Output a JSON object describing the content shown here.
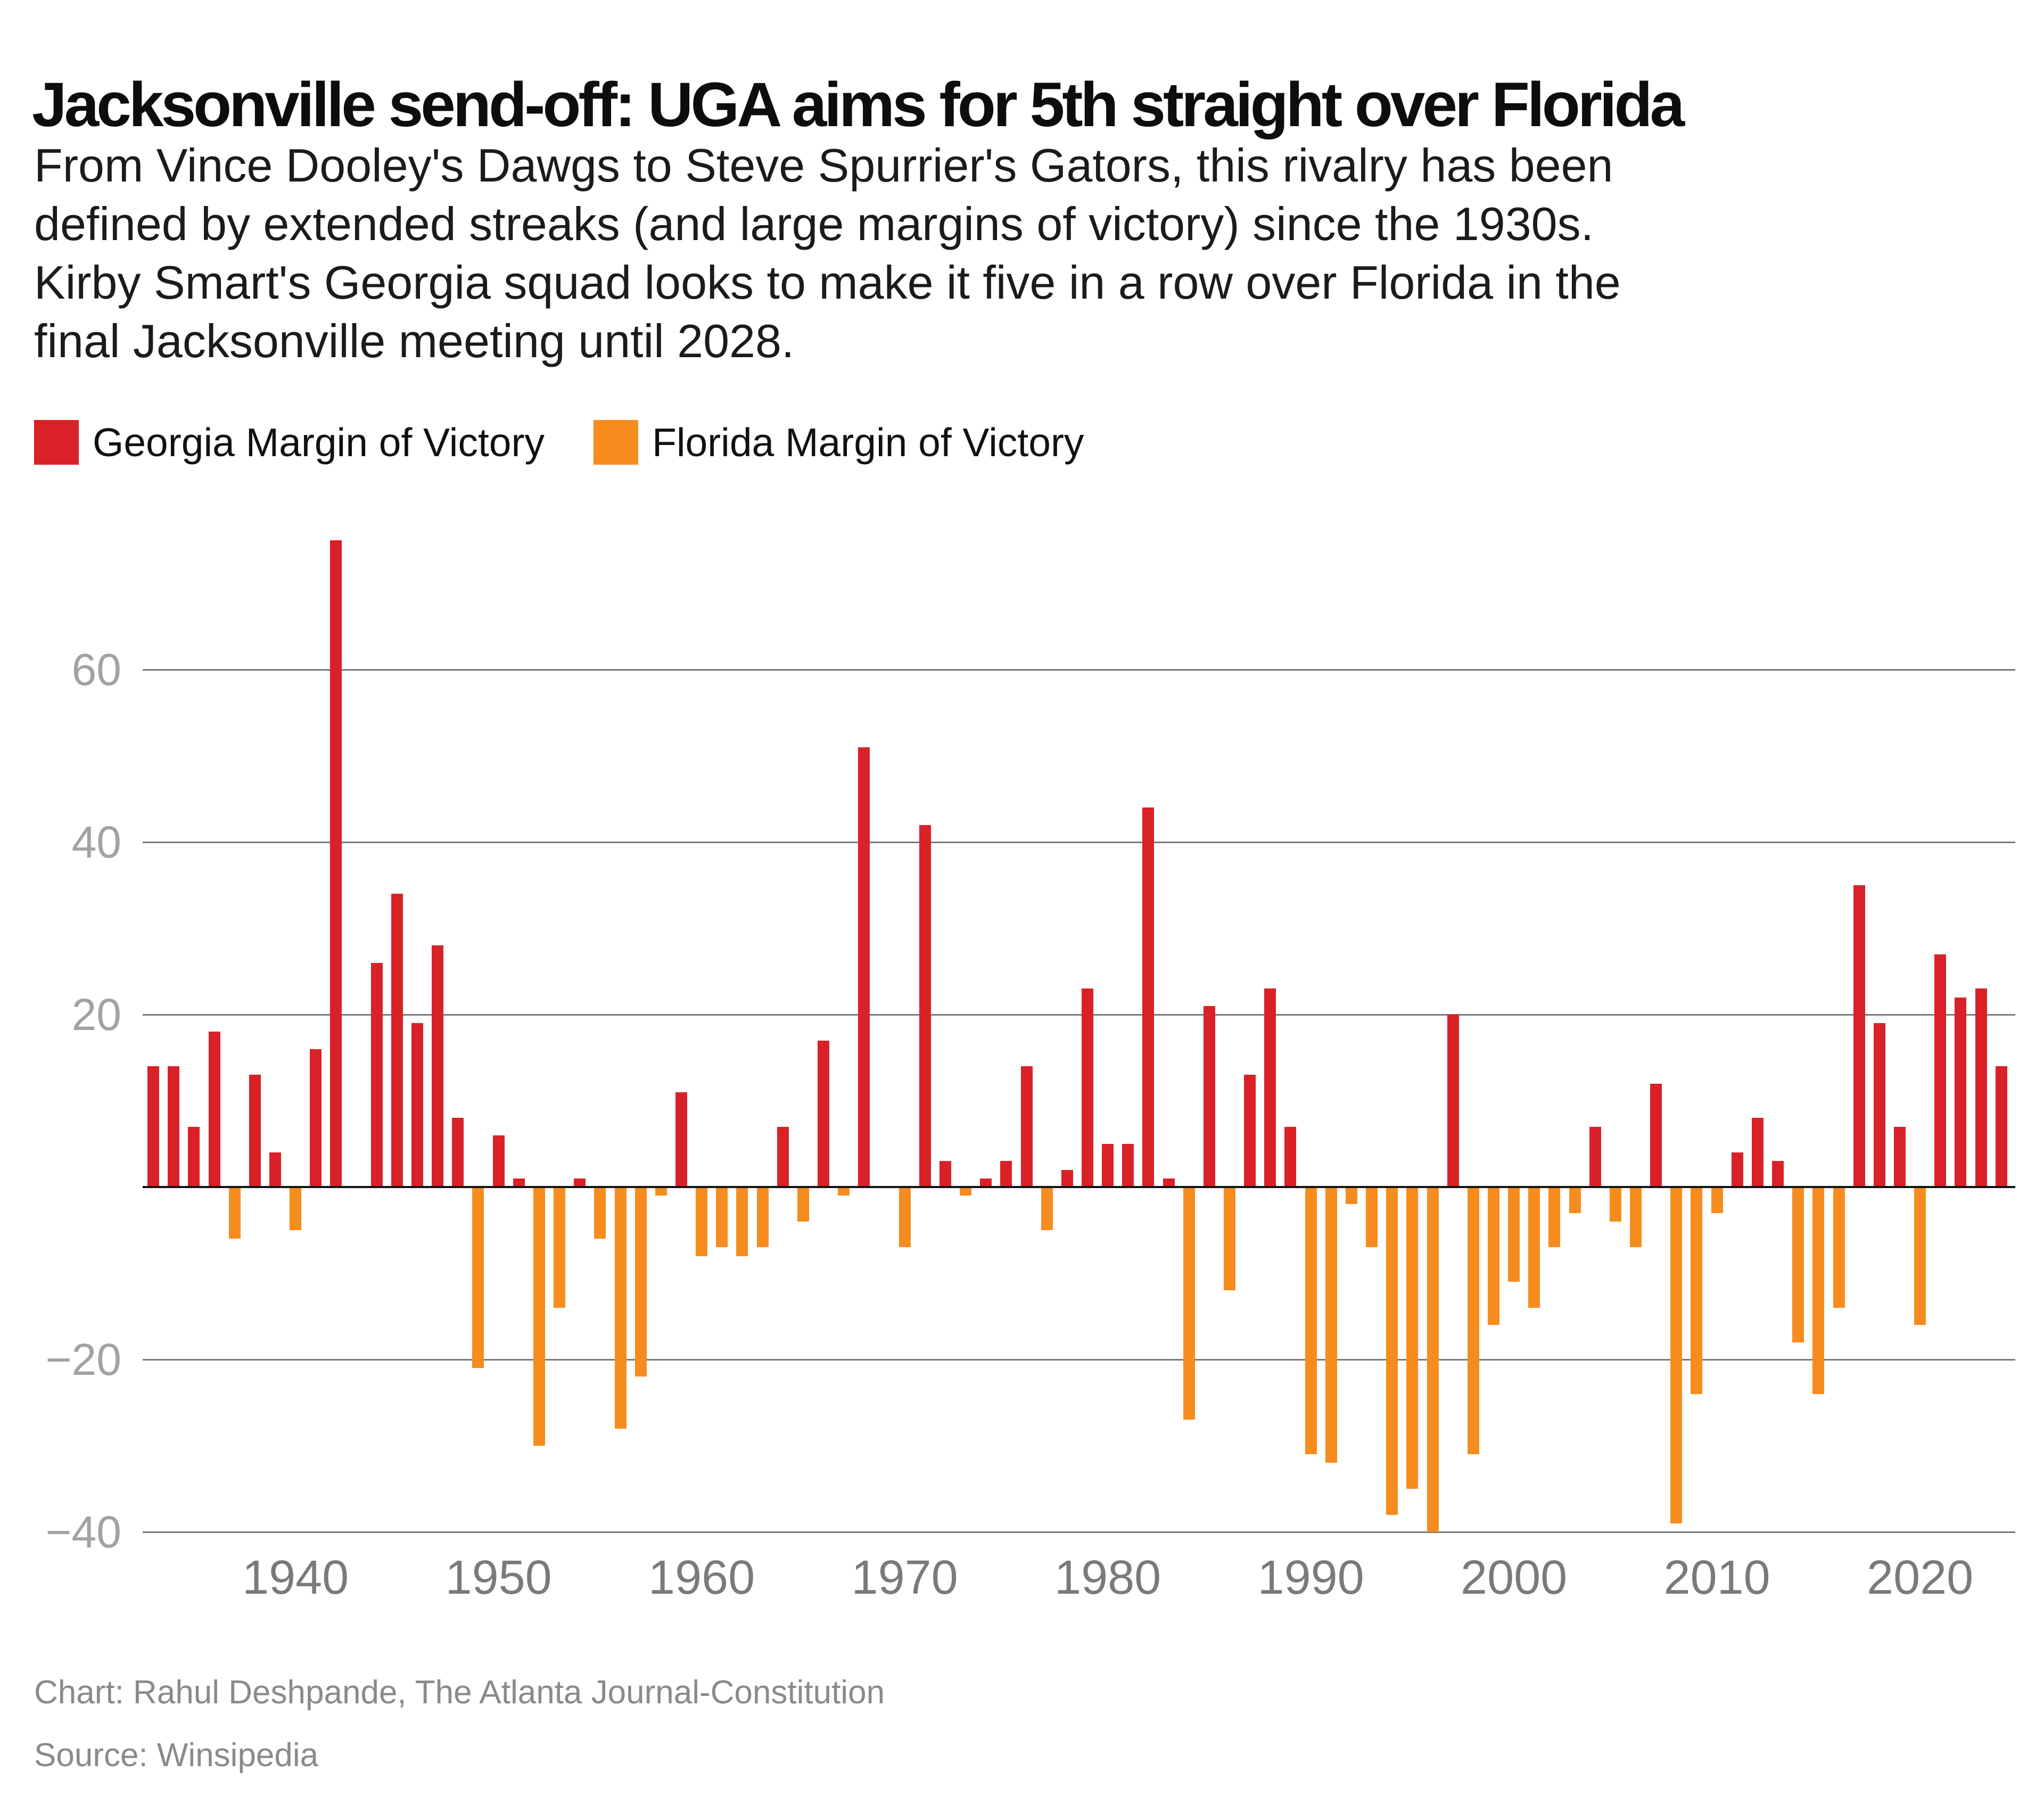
{
  "header": {
    "title": "Jacksonville send-off: UGA aims for 5th straight over Florida"
  },
  "subtitle": {
    "lines": [
      "From Vince Dooley's Dawgs to Steve Spurrier's Gators, this rivalry has been",
      "defined by extended streaks (and large margins of victory) since the 1930s.",
      "Kirby Smart's Georgia squad looks to make it five in a row over Florida in the",
      "final Jacksonville meeting until 2028."
    ]
  },
  "legend": {
    "items": [
      {
        "label": "Georgia Margin of Victory",
        "color": "#da2127"
      },
      {
        "label": "Florida Margin of Victory",
        "color": "#f68c1e"
      }
    ]
  },
  "chart_data": {
    "type": "bar",
    "title": "Jacksonville send-off: UGA aims for 5th straight over Florida",
    "xlabel": "",
    "ylabel": "",
    "x_range": [
      1933,
      2024
    ],
    "ylim": [
      -42,
      78
    ],
    "grid": "horizontal",
    "y_ticks": [
      60,
      40,
      20,
      -20,
      -40
    ],
    "y_tick_labels": [
      "60",
      "40",
      "20",
      "−20",
      "−40"
    ],
    "x_ticks": [
      1940,
      1950,
      1960,
      1970,
      1980,
      1990,
      2000,
      2010,
      2020
    ],
    "colors": {
      "georgia": "#da2127",
      "florida": "#f68c1e"
    },
    "value_sign": {
      "positive": "Georgia margin of victory",
      "negative": "Florida margin of victory",
      "zero": "tie",
      "null": "no game played"
    },
    "games": [
      [
        1933,
        14
      ],
      [
        1934,
        14
      ],
      [
        1935,
        7
      ],
      [
        1936,
        18
      ],
      [
        1937,
        -6
      ],
      [
        1938,
        13
      ],
      [
        1939,
        4
      ],
      [
        1940,
        -5
      ],
      [
        1941,
        16
      ],
      [
        1942,
        75
      ],
      [
        1943,
        null
      ],
      [
        1944,
        26
      ],
      [
        1945,
        34
      ],
      [
        1946,
        19
      ],
      [
        1947,
        28
      ],
      [
        1948,
        8
      ],
      [
        1949,
        -21
      ],
      [
        1950,
        6
      ],
      [
        1951,
        1
      ],
      [
        1952,
        -30
      ],
      [
        1953,
        -14
      ],
      [
        1954,
        1
      ],
      [
        1955,
        -6
      ],
      [
        1956,
        -28
      ],
      [
        1957,
        -22
      ],
      [
        1958,
        -1
      ],
      [
        1959,
        11
      ],
      [
        1960,
        -8
      ],
      [
        1961,
        -7
      ],
      [
        1962,
        -8
      ],
      [
        1963,
        -7
      ],
      [
        1964,
        7
      ],
      [
        1965,
        -4
      ],
      [
        1966,
        17
      ],
      [
        1967,
        -1
      ],
      [
        1968,
        51
      ],
      [
        1969,
        0
      ],
      [
        1970,
        -7
      ],
      [
        1971,
        42
      ],
      [
        1972,
        3
      ],
      [
        1973,
        -1
      ],
      [
        1974,
        1
      ],
      [
        1975,
        3
      ],
      [
        1976,
        14
      ],
      [
        1977,
        -5
      ],
      [
        1978,
        2
      ],
      [
        1979,
        23
      ],
      [
        1980,
        5
      ],
      [
        1981,
        5
      ],
      [
        1982,
        44
      ],
      [
        1983,
        1
      ],
      [
        1984,
        -27
      ],
      [
        1985,
        21
      ],
      [
        1986,
        -12
      ],
      [
        1987,
        13
      ],
      [
        1988,
        23
      ],
      [
        1989,
        7
      ],
      [
        1990,
        -31
      ],
      [
        1991,
        -32
      ],
      [
        1992,
        -2
      ],
      [
        1993,
        -7
      ],
      [
        1994,
        -38
      ],
      [
        1995,
        -35
      ],
      [
        1996,
        -40
      ],
      [
        1997,
        20
      ],
      [
        1998,
        -31
      ],
      [
        1999,
        -16
      ],
      [
        2000,
        -11
      ],
      [
        2001,
        -14
      ],
      [
        2002,
        -7
      ],
      [
        2003,
        -3
      ],
      [
        2004,
        7
      ],
      [
        2005,
        -4
      ],
      [
        2006,
        -7
      ],
      [
        2007,
        12
      ],
      [
        2008,
        -39
      ],
      [
        2009,
        -24
      ],
      [
        2010,
        -3
      ],
      [
        2011,
        4
      ],
      [
        2012,
        8
      ],
      [
        2013,
        3
      ],
      [
        2014,
        -18
      ],
      [
        2015,
        -24
      ],
      [
        2016,
        -14
      ],
      [
        2017,
        35
      ],
      [
        2018,
        19
      ],
      [
        2019,
        7
      ],
      [
        2020,
        -16
      ],
      [
        2021,
        27
      ],
      [
        2022,
        22
      ],
      [
        2023,
        23
      ],
      [
        2024,
        14
      ]
    ]
  },
  "footer": {
    "credit": "Chart: Rahul Deshpande, The Atlanta Journal-Constitution",
    "source": "Source: Winsipedia"
  }
}
